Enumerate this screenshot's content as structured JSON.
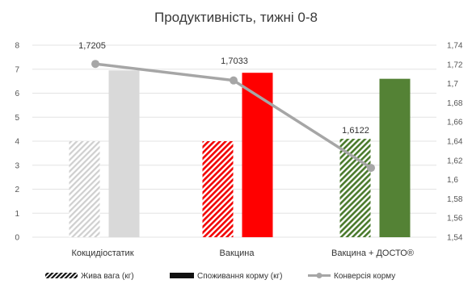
{
  "chart_data": {
    "type": "bar",
    "title": "Продуктивність, тижні 0-8",
    "categories": [
      "Кокцидіостатик",
      "Вакцина",
      "Вакцина + ДОСТО®"
    ],
    "series": [
      {
        "name": "Жива вага (кг)",
        "kind": "bar",
        "axis": "left",
        "pattern": "hatched",
        "values": [
          4.0,
          4.0,
          4.1
        ],
        "colors": [
          "#cfcfcf",
          "#f20000",
          "#4a7a2c"
        ]
      },
      {
        "name": "Споживання корму (кг)",
        "kind": "bar",
        "axis": "left",
        "pattern": "solid",
        "values": [
          6.95,
          6.85,
          6.6
        ],
        "colors": [
          "#d9d9d9",
          "#ff0000",
          "#548235"
        ]
      },
      {
        "name": "Конверсія корму",
        "kind": "line",
        "axis": "right",
        "color": "#a6a6a6",
        "values": [
          1.7205,
          1.7033,
          1.6122
        ],
        "labels": [
          "1,7205",
          "1,7033",
          "1,6122"
        ]
      }
    ],
    "left_axis": {
      "min": 0,
      "max": 8,
      "ticks": [
        "0",
        "1",
        "2",
        "3",
        "4",
        "5",
        "6",
        "7",
        "8"
      ]
    },
    "right_axis": {
      "min": 1.54,
      "max": 1.74,
      "ticks": [
        "1,54",
        "1,56",
        "1,58",
        "1,6",
        "1,62",
        "1,64",
        "1,66",
        "1,68",
        "1,7",
        "1,72",
        "1,74"
      ]
    },
    "grid": true,
    "legend_position": "bottom"
  }
}
